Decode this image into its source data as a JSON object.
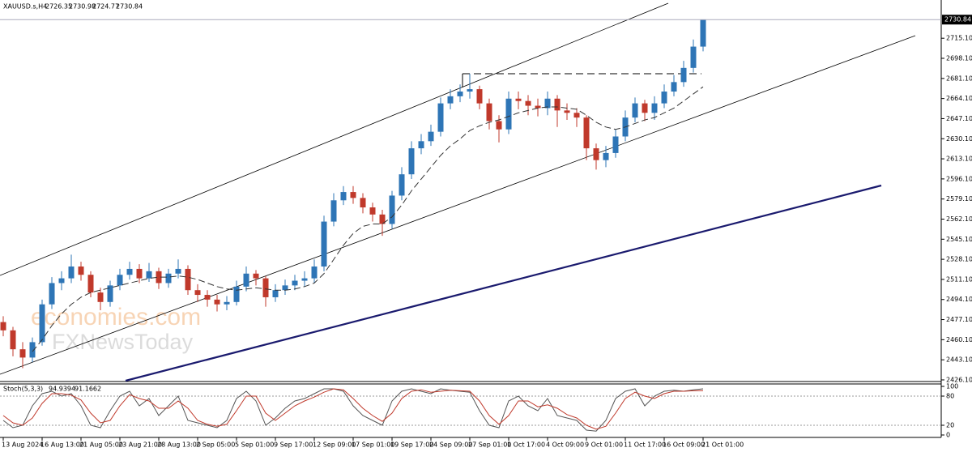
{
  "chart_data": [
    {
      "type": "candlestick",
      "title": "XAUUSD.s,H4",
      "header_ohlc": [
        2726.35,
        2730.98,
        2724.77,
        2730.84
      ],
      "watermark": [
        "economies.com",
        "FXNewsToday"
      ],
      "categories": [
        "13 Aug 2024",
        null,
        null,
        null,
        "16 Aug 13:00",
        null,
        null,
        null,
        "21 Aug 05:00",
        null,
        null,
        null,
        "23 Aug 21:00",
        null,
        null,
        null,
        "28 Aug 13:00",
        null,
        null,
        null,
        "2 Sep 05:00",
        null,
        null,
        null,
        "5 Sep 01:00",
        null,
        null,
        null,
        "9 Sep 17:00",
        null,
        null,
        null,
        "12 Sep 09:00",
        null,
        null,
        null,
        "17 Sep 01:00",
        null,
        null,
        null,
        "19 Sep 17:00",
        null,
        null,
        null,
        "24 Sep 09:00",
        null,
        null,
        null,
        "27 Sep 01:00",
        null,
        null,
        null,
        "1 Oct 17:00",
        null,
        null,
        null,
        "4 Oct 09:00",
        null,
        null,
        null,
        "9 Oct 01:00",
        null,
        null,
        null,
        "11 Oct 17:00",
        null,
        null,
        null,
        "16 Oct 09:00",
        null,
        null,
        null,
        "21 Oct 01:00"
      ],
      "open": [
        2475,
        2468,
        2452,
        2445,
        2458,
        2490,
        2508,
        2512,
        2522,
        2515,
        2500,
        2492,
        2506,
        2515,
        2520,
        2512,
        2518,
        2508,
        2516,
        2520,
        2502,
        2498,
        2494,
        2490,
        2492,
        2505,
        2516,
        2512,
        2496,
        2502,
        2506,
        2510,
        2512,
        2522,
        2560,
        2578,
        2585,
        2580,
        2572,
        2566,
        2558,
        2582,
        2600,
        2622,
        2628,
        2636,
        2660,
        2666,
        2670,
        2672,
        2660,
        2645,
        2638,
        2664,
        2662,
        2658,
        2656,
        2664,
        2654,
        2652,
        2648,
        2622,
        2612,
        2618,
        2632,
        2648,
        2660,
        2652,
        2660,
        2670,
        2678,
        2690,
        2708
      ],
      "high": [
        2480,
        2471,
        2458,
        2462,
        2494,
        2513,
        2518,
        2532,
        2526,
        2518,
        2504,
        2510,
        2520,
        2526,
        2524,
        2525,
        2521,
        2520,
        2528,
        2523,
        2507,
        2502,
        2498,
        2497,
        2510,
        2522,
        2519,
        2514,
        2507,
        2511,
        2515,
        2518,
        2528,
        2565,
        2584,
        2590,
        2590,
        2584,
        2576,
        2570,
        2586,
        2606,
        2628,
        2634,
        2642,
        2665,
        2672,
        2676,
        2685,
        2675,
        2664,
        2650,
        2670,
        2670,
        2667,
        2664,
        2670,
        2667,
        2660,
        2656,
        2650,
        2626,
        2624,
        2638,
        2654,
        2665,
        2663,
        2666,
        2676,
        2684,
        2696,
        2714,
        2730.98
      ],
      "low": [
        2463,
        2446,
        2436,
        2441,
        2455,
        2486,
        2502,
        2508,
        2510,
        2496,
        2485,
        2488,
        2502,
        2511,
        2508,
        2509,
        2503,
        2504,
        2512,
        2498,
        2492,
        2488,
        2484,
        2485,
        2489,
        2501,
        2506,
        2488,
        2492,
        2498,
        2502,
        2505,
        2508,
        2518,
        2556,
        2574,
        2575,
        2567,
        2560,
        2548,
        2554,
        2578,
        2596,
        2617,
        2624,
        2632,
        2655,
        2661,
        2664,
        2655,
        2638,
        2627,
        2634,
        2655,
        2650,
        2649,
        2650,
        2640,
        2646,
        2640,
        2612,
        2604,
        2606,
        2614,
        2628,
        2644,
        2645,
        2646,
        2656,
        2666,
        2674,
        2686,
        2704
      ],
      "close": [
        2468,
        2452,
        2445,
        2458,
        2490,
        2508,
        2512,
        2522,
        2515,
        2500,
        2492,
        2506,
        2515,
        2520,
        2512,
        2518,
        2508,
        2516,
        2520,
        2502,
        2498,
        2494,
        2490,
        2492,
        2505,
        2516,
        2512,
        2496,
        2502,
        2506,
        2510,
        2512,
        2522,
        2560,
        2578,
        2585,
        2580,
        2572,
        2566,
        2558,
        2582,
        2600,
        2622,
        2628,
        2636,
        2660,
        2666,
        2670,
        2672,
        2660,
        2645,
        2638,
        2664,
        2662,
        2658,
        2656,
        2664,
        2654,
        2652,
        2648,
        2622,
        2612,
        2618,
        2632,
        2648,
        2660,
        2652,
        2660,
        2670,
        2678,
        2690,
        2708,
        2730.84
      ],
      "ma": [
        null,
        null,
        null,
        2450,
        2460,
        2472,
        2482,
        2490,
        2496,
        2500,
        2502,
        2504,
        2506,
        2508,
        2510,
        2512,
        2513,
        2513,
        2514,
        2513,
        2511,
        2508,
        2505,
        2503,
        2502,
        2503,
        2504,
        2503,
        2502,
        2502,
        2503,
        2505,
        2508,
        2516,
        2528,
        2540,
        2550,
        2556,
        2558,
        2558,
        2564,
        2574,
        2586,
        2596,
        2606,
        2616,
        2624,
        2630,
        2637,
        2641,
        2644,
        2646,
        2649,
        2652,
        2654,
        2656,
        2657,
        2657,
        2656,
        2655,
        2650,
        2644,
        2640,
        2638,
        2640,
        2643,
        2646,
        2648,
        2652,
        2656,
        2662,
        2668,
        2674
      ],
      "up_color": "#2e75b6",
      "down_color": "#c0392b",
      "ma_color": "#333333",
      "ylim": [
        2425.4,
        2744.7
      ],
      "yticks": [
        {
          "value": 2426.1,
          "label": "2426.10"
        },
        {
          "value": 2443.1,
          "label": "2443.10"
        },
        {
          "value": 2460.1,
          "label": "2460.10"
        },
        {
          "value": 2477.1,
          "label": "2477.10"
        },
        {
          "value": 2494.1,
          "label": "2494.10"
        },
        {
          "value": 2511.1,
          "label": "2511.10"
        },
        {
          "value": 2528.1,
          "label": "2528.10"
        },
        {
          "value": 2545.1,
          "label": "2545.10"
        },
        {
          "value": 2562.1,
          "label": "2562.10"
        },
        {
          "value": 2579.1,
          "label": "2579.10"
        },
        {
          "value": 2596.1,
          "label": "2596.10"
        },
        {
          "value": 2613.1,
          "label": "2613.10"
        },
        {
          "value": 2630.1,
          "label": "2630.10"
        },
        {
          "value": 2647.1,
          "label": "2647.10"
        },
        {
          "value": 2664.1,
          "label": "2664.10"
        },
        {
          "value": 2681.1,
          "label": "2681.10"
        },
        {
          "value": 2698.1,
          "label": "2698.10"
        },
        {
          "value": 2715.1,
          "label": "2715.10"
        }
      ]
    },
    {
      "type": "line",
      "title": "Stoch(5,3,3)",
      "series": [
        {
          "color": "#555555",
          "values": [
            30,
            15,
            20,
            60,
            85,
            90,
            80,
            85,
            60,
            20,
            15,
            50,
            80,
            90,
            60,
            75,
            40,
            60,
            80,
            30,
            25,
            20,
            15,
            30,
            75,
            90,
            70,
            20,
            35,
            55,
            70,
            75,
            85,
            95,
            95,
            90,
            60,
            40,
            30,
            20,
            70,
            90,
            95,
            90,
            85,
            95,
            92,
            90,
            88,
            50,
            20,
            15,
            70,
            80,
            60,
            50,
            75,
            40,
            35,
            30,
            10,
            8,
            30,
            75,
            90,
            95,
            60,
            80,
            90,
            92,
            90,
            93,
            94.9394
          ]
        },
        {
          "color": "#c0392b",
          "values": [
            40,
            25,
            20,
            35,
            65,
            85,
            85,
            82,
            72,
            45,
            25,
            30,
            60,
            83,
            75,
            70,
            55,
            55,
            70,
            55,
            30,
            22,
            18,
            22,
            50,
            80,
            80,
            45,
            30,
            45,
            60,
            70,
            78,
            88,
            95,
            93,
            75,
            55,
            40,
            28,
            45,
            75,
            90,
            93,
            88,
            90,
            92,
            91,
            90,
            70,
            40,
            22,
            40,
            70,
            70,
            58,
            62,
            55,
            42,
            35,
            20,
            12,
            18,
            45,
            75,
            88,
            80,
            75,
            85,
            90,
            90,
            91,
            91.1662
          ]
        }
      ],
      "ylim": [
        0,
        100
      ],
      "yticks": [
        0,
        20,
        80,
        100
      ]
    }
  ]
}
